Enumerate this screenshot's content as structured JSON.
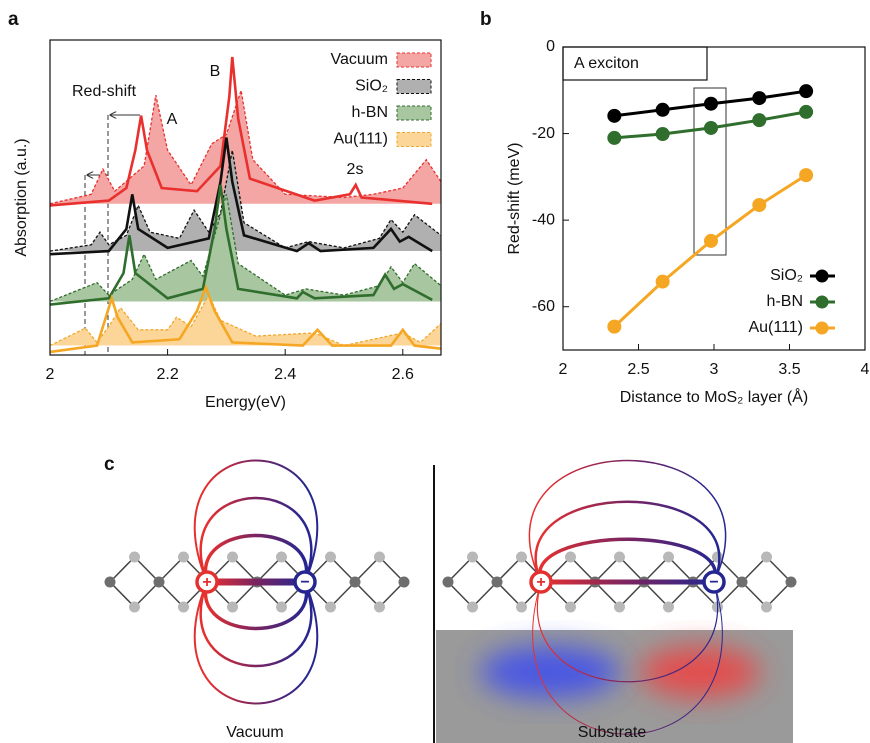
{
  "panel_labels": [
    "a",
    "b",
    "c"
  ],
  "chart_data": [
    {
      "type": "line",
      "xlabel": "Energy(eV)",
      "ylabel": "Absorption (a.u.)",
      "xlim": [
        2,
        2.665
      ],
      "ylim": [
        0,
        10
      ],
      "xticks": [
        2,
        2.2,
        2.4,
        2.6
      ],
      "annotations": [
        "Red-shift",
        "A",
        "B",
        "2s"
      ],
      "legend": "upper right",
      "series": [
        {
          "name": "Vacuum",
          "color": "#e8312f",
          "fill": "#f4a6a4",
          "dashed": true,
          "x": [
            2.0,
            2.07,
            2.09,
            2.11,
            2.16,
            2.18,
            2.2,
            2.24,
            2.275,
            2.3,
            2.325,
            2.345,
            2.4,
            2.5,
            2.55,
            2.6,
            2.64,
            2.665
          ],
          "values": [
            4.8,
            5.1,
            5.9,
            5.2,
            6.0,
            8.25,
            6.5,
            5.4,
            6.7,
            7.0,
            8.4,
            6.2,
            5.1,
            5.0,
            5.1,
            5.3,
            6.2,
            5.5
          ]
        },
        {
          "color": "#e8312f",
          "dashed": false,
          "x": [
            2.0,
            2.1,
            2.13,
            2.145,
            2.155,
            2.165,
            2.19,
            2.25,
            2.29,
            2.305,
            2.31,
            2.32,
            2.34,
            2.45,
            2.51,
            2.52,
            2.53,
            2.65
          ],
          "values": [
            4.75,
            4.9,
            5.3,
            6.5,
            7.6,
            6.5,
            5.3,
            5.2,
            6.0,
            8.2,
            9.46,
            7.5,
            5.6,
            4.9,
            5.1,
            5.4,
            5.0,
            4.8
          ]
        },
        {
          "name": "SiO₂",
          "color": "#111111",
          "fill": "#b0b0b0",
          "dashed": true,
          "x": [
            2.0,
            2.07,
            2.085,
            2.1,
            2.13,
            2.15,
            2.17,
            2.22,
            2.245,
            2.27,
            2.29,
            2.31,
            2.33,
            2.4,
            2.44,
            2.5,
            2.56,
            2.58,
            2.6,
            2.62,
            2.665
          ],
          "values": [
            3.3,
            3.5,
            3.9,
            3.5,
            3.8,
            4.75,
            3.9,
            3.7,
            4.6,
            3.9,
            4.5,
            6.5,
            4.2,
            3.4,
            3.6,
            3.4,
            3.7,
            4.3,
            3.9,
            4.45,
            3.8
          ]
        },
        {
          "color": "#111111",
          "dashed": false,
          "x": [
            2.0,
            2.1,
            2.13,
            2.14,
            2.15,
            2.2,
            2.27,
            2.29,
            2.3,
            2.31,
            2.33,
            2.42,
            2.44,
            2.46,
            2.55,
            2.58,
            2.595,
            2.61,
            2.65
          ],
          "values": [
            3.2,
            3.3,
            4.0,
            5.1,
            4.0,
            3.4,
            3.7,
            5.5,
            6.9,
            5.5,
            3.8,
            3.3,
            3.55,
            3.3,
            3.4,
            4.0,
            3.6,
            3.75,
            3.3
          ]
        },
        {
          "name": "h-BN",
          "color": "#2f6e2c",
          "fill": "#a8c6a0",
          "dashed": true,
          "x": [
            2.0,
            2.08,
            2.1,
            2.14,
            2.16,
            2.18,
            2.24,
            2.26,
            2.3,
            2.32,
            2.4,
            2.435,
            2.5,
            2.56,
            2.58,
            2.6,
            2.62,
            2.665
          ],
          "values": [
            1.7,
            2.3,
            1.9,
            2.4,
            3.2,
            2.4,
            3.0,
            2.5,
            5.1,
            2.9,
            1.9,
            2.1,
            1.9,
            2.2,
            2.8,
            2.3,
            2.9,
            2.2
          ]
        },
        {
          "color": "#2f6e2c",
          "dashed": false,
          "x": [
            2.0,
            2.1,
            2.125,
            2.135,
            2.145,
            2.2,
            2.26,
            2.28,
            2.29,
            2.3,
            2.32,
            2.42,
            2.43,
            2.45,
            2.55,
            2.57,
            2.585,
            2.6,
            2.65
          ],
          "values": [
            1.6,
            1.8,
            2.6,
            3.8,
            2.6,
            1.8,
            2.1,
            4.0,
            5.4,
            4.0,
            2.1,
            1.8,
            2.0,
            1.8,
            1.9,
            2.55,
            2.1,
            2.25,
            1.75
          ]
        },
        {
          "name": "Au(111)",
          "color": "#f2a72b",
          "fill": "#fcd699",
          "dashed": true,
          "x": [
            2.0,
            2.06,
            2.08,
            2.1,
            2.12,
            2.15,
            2.2,
            2.215,
            2.24,
            2.27,
            2.29,
            2.35,
            2.45,
            2.5,
            2.6,
            2.63,
            2.665
          ],
          "values": [
            0.3,
            0.85,
            0.4,
            0.9,
            1.5,
            0.8,
            0.8,
            1.2,
            0.9,
            1.9,
            1.1,
            0.6,
            0.7,
            0.3,
            0.7,
            0.4,
            1.0
          ]
        },
        {
          "color": "#f5a623",
          "dashed": false,
          "x": [
            2.0,
            2.08,
            2.095,
            2.105,
            2.115,
            2.14,
            2.22,
            2.25,
            2.265,
            2.28,
            2.31,
            2.43,
            2.455,
            2.48,
            2.58,
            2.6,
            2.62,
            2.665
          ],
          "values": [
            0.1,
            0.3,
            1.2,
            1.8,
            1.2,
            0.4,
            0.5,
            1.4,
            2.15,
            1.4,
            0.4,
            0.3,
            0.8,
            0.3,
            0.3,
            0.8,
            0.3,
            0.2
          ]
        }
      ]
    },
    {
      "type": "line",
      "xlabel": "Distance to MoS₂ layer (Å)",
      "ylabel": "Red-shift (meV)",
      "annotation": "A exciton",
      "markers": true,
      "legend": "lower right",
      "xlim": [
        2,
        4
      ],
      "ylim": [
        -70,
        0
      ],
      "xticks": [
        2,
        2.5,
        3,
        3.5,
        4
      ],
      "yticks": [
        0,
        -20,
        -40,
        -60
      ],
      "x": [
        2.34,
        2.66,
        2.98,
        3.3,
        3.61
      ],
      "series": [
        {
          "name": "SiO₂",
          "color": "#000000",
          "values": [
            -15.9,
            -14.5,
            -13.1,
            -11.8,
            -10.2
          ]
        },
        {
          "name": "h-BN",
          "color": "#2f6e2c",
          "values": [
            -21,
            -20.1,
            -18.7,
            -16.9,
            -15
          ]
        },
        {
          "name": "Au(111)",
          "color": "#f5a623",
          "values": [
            -64.6,
            -54.2,
            -44.8,
            -36.5,
            -29.6
          ]
        }
      ]
    }
  ],
  "diagram": {
    "charges": [
      "+",
      "−"
    ],
    "labels": [
      "Vacuum",
      "Substrate"
    ]
  }
}
